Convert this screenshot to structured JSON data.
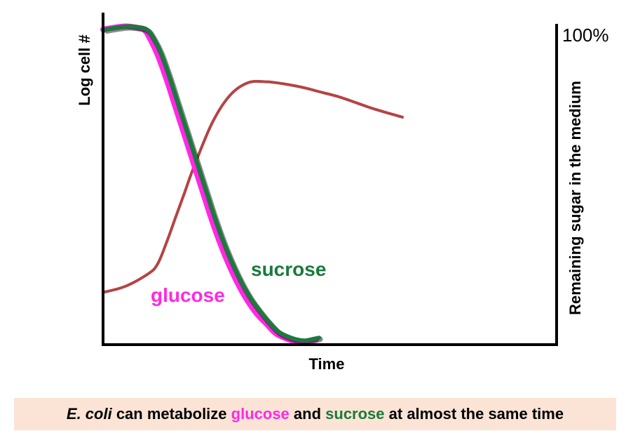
{
  "chart_data": {
    "type": "line",
    "xlabel": "Time",
    "ylabel_left": "Log cell #",
    "ylabel_right": "Remaining sugar in the medium",
    "right_axis_max_label": "100%",
    "x_range": [
      0,
      100
    ],
    "y_range": [
      0,
      100
    ],
    "grid": false,
    "series": [
      {
        "name": "glucose",
        "color": "#ff29e4",
        "axis": "right",
        "x": [
          0,
          2,
          5,
          8,
          9,
          10,
          12,
          14,
          16,
          18,
          20,
          22,
          24,
          26,
          28,
          30,
          32,
          34,
          36,
          38,
          40,
          42,
          44,
          45,
          47
        ],
        "y": [
          100,
          100.5,
          101,
          100.5,
          100,
          98,
          92,
          84,
          75,
          66,
          57,
          48,
          39,
          31,
          24,
          18,
          13,
          9,
          6,
          3,
          1.5,
          0.5,
          0.2,
          0.5,
          1
        ]
      },
      {
        "name": "sucrose",
        "color": "#1a7a3c",
        "axis": "right",
        "x": [
          0,
          2,
          5,
          8,
          9,
          10,
          12,
          14,
          16,
          18,
          20,
          22,
          24,
          26,
          28,
          30,
          32,
          34,
          36,
          38,
          40,
          42,
          44,
          45,
          47
        ],
        "y": [
          100,
          100.5,
          101,
          100.5,
          100,
          98.5,
          93,
          85,
          76,
          67,
          58,
          49,
          40,
          32,
          25,
          19,
          14,
          10,
          6.5,
          3.5,
          2,
          1,
          0.6,
          0.9,
          1.5
        ]
      },
      {
        "name": "cell growth",
        "color": "#b54343",
        "axis": "left",
        "x": [
          0,
          5,
          10,
          12,
          14,
          16,
          18,
          20,
          24,
          28,
          32,
          36,
          40,
          44,
          48,
          52,
          56,
          60,
          66
        ],
        "y": [
          16,
          18,
          22,
          25,
          32,
          40,
          48,
          56,
          70,
          79,
          83,
          83.3,
          82.6,
          81.5,
          80,
          78.5,
          76.5,
          74.5,
          72
        ]
      }
    ]
  },
  "labels": {
    "time": "Time",
    "log_cell": "Log cell #",
    "remaining_sugar": "Remaining sugar in the medium",
    "hundred_percent": "100%",
    "glucose": "glucose",
    "sucrose": "sucrose"
  },
  "caption": {
    "organism": "E. coli",
    "part1": " can metabolize ",
    "glucose": "glucose",
    "part2": " and ",
    "sucrose": "sucrose",
    "part3": " at almost the same time",
    "background": "#fbe4d6",
    "glucose_color": "#ff29e4",
    "sucrose_color": "#1a7a3c"
  }
}
